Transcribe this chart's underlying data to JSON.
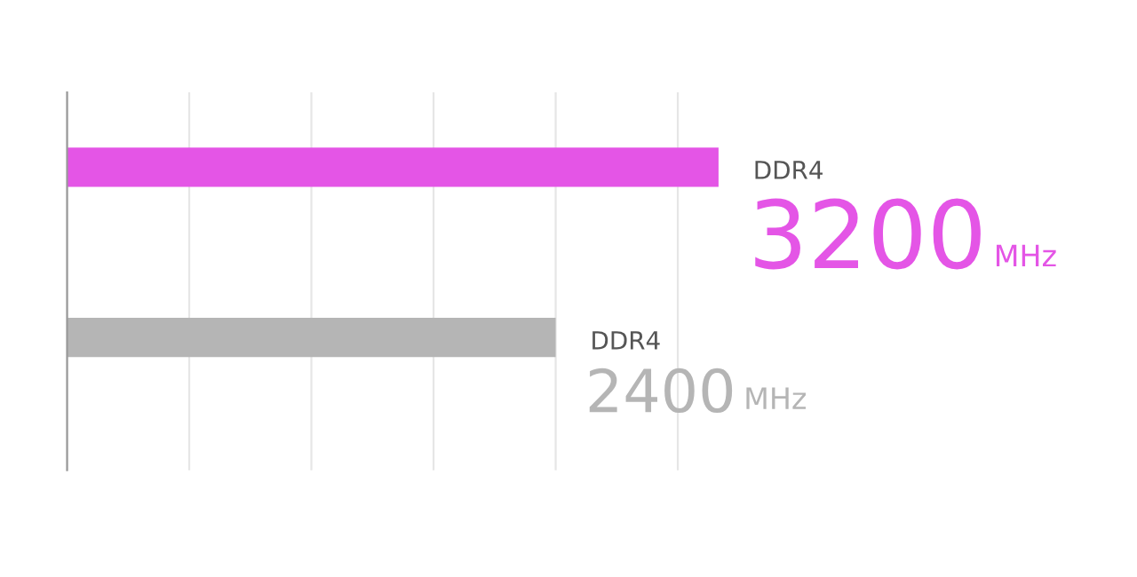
{
  "chart_data": {
    "type": "bar",
    "orientation": "horizontal",
    "categories": [
      "DDR4",
      "DDR4"
    ],
    "values": [
      3200,
      2400
    ],
    "colors": [
      "#e455e6",
      "#b5b5b5"
    ],
    "data_labels": true,
    "xlabel": "MHz",
    "xticks": [
      {
        "value": 0,
        "label": null
      },
      {
        "value": 600,
        "label": null
      },
      {
        "value": 1200,
        "label": null
      },
      {
        "value": 1800,
        "label": null
      },
      {
        "value": 2400,
        "label": null
      },
      {
        "value": 3000,
        "label": null
      }
    ],
    "grid": "x"
  }
}
